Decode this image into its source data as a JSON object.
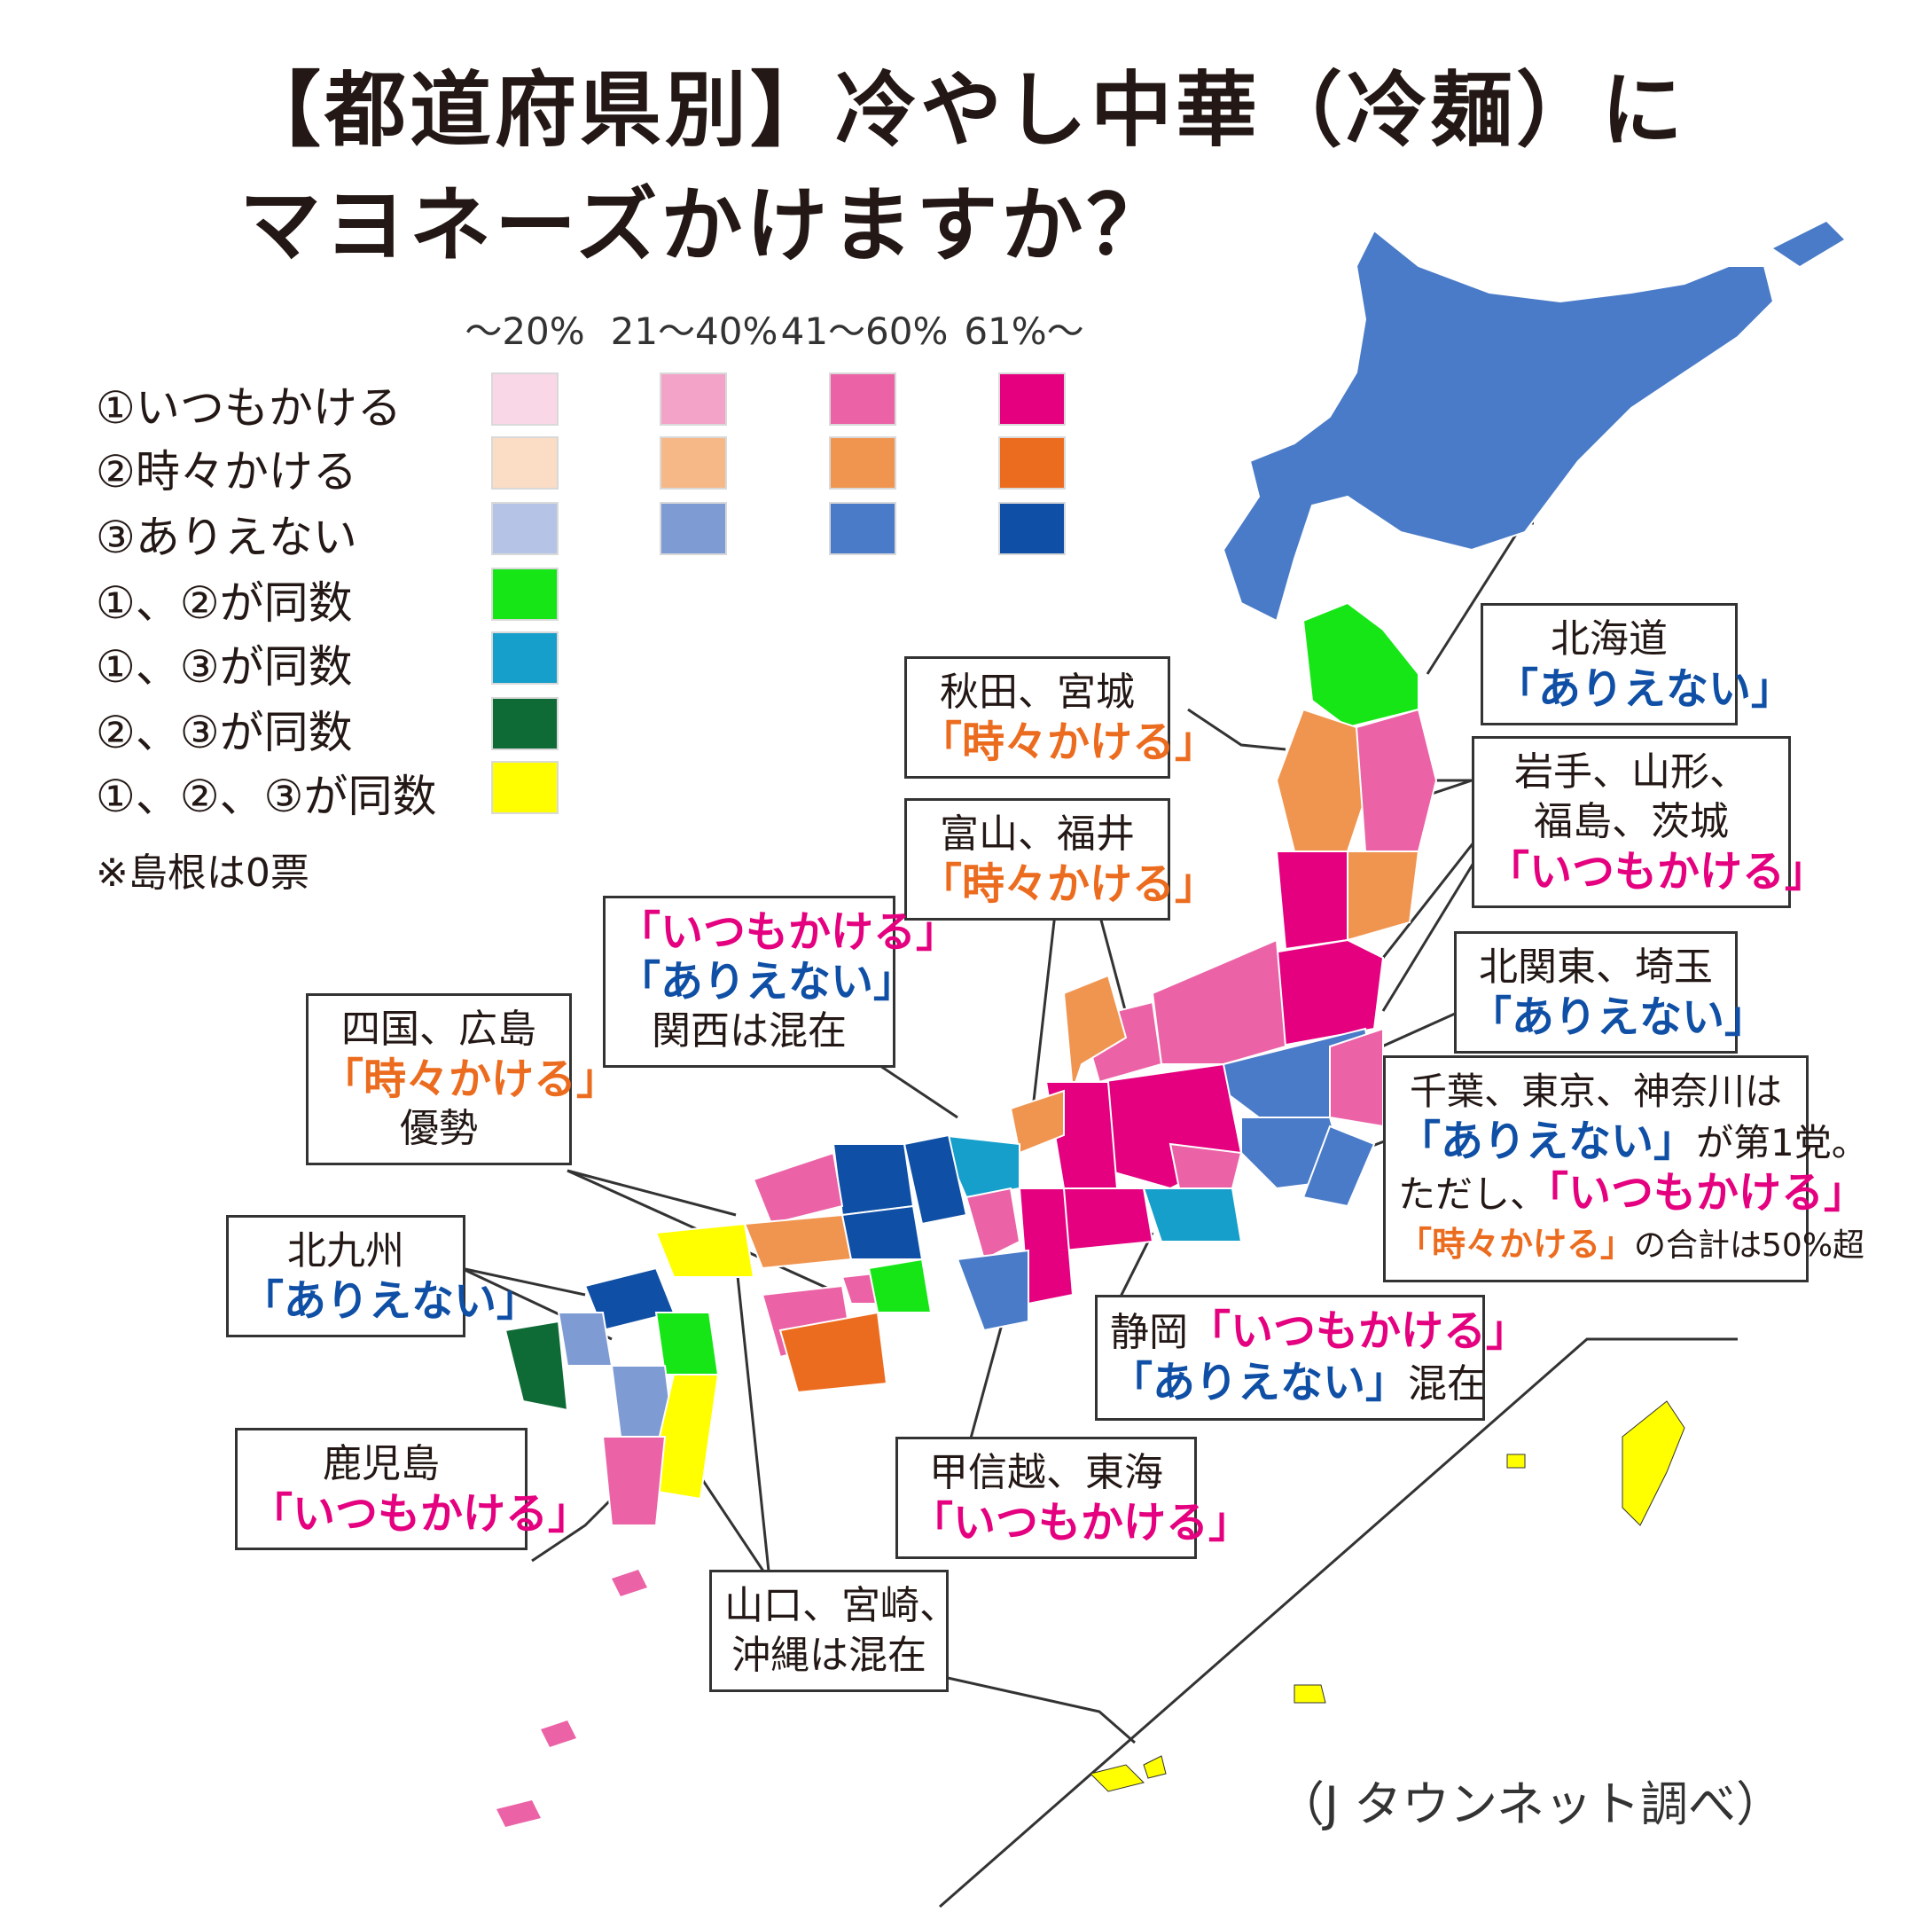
{
  "title": {
    "line1": "【都道府県別】冷やし中華（冷麺）に",
    "line2": "マヨネーズかけますか？"
  },
  "legend": {
    "columns": [
      "～20%",
      "21～40%",
      "41～60%",
      "61%～"
    ],
    "rows": [
      {
        "label": "①いつもかける",
        "colors": [
          "#f9d7e6",
          "#f4a3c8",
          "#eb63a6",
          "#e4007f"
        ]
      },
      {
        "label": "②時々かける",
        "colors": [
          "#fbdcc5",
          "#f7b888",
          "#f09550",
          "#ec6c1f"
        ]
      },
      {
        "label": "③ありえない",
        "colors": [
          "#b5c4e6",
          "#7f9bd3",
          "#4a7bc8",
          "#0f4fa5"
        ]
      },
      {
        "label": "①、②が同数",
        "colors": [
          "#16e616"
        ]
      },
      {
        "label": "①、③が同数",
        "colors": [
          "#159fca"
        ]
      },
      {
        "label": "②、③が同数",
        "colors": [
          "#0f6b35"
        ]
      },
      {
        "label": "①、②、③が同数",
        "colors": [
          "#ffff00"
        ]
      }
    ],
    "note": "※島根は0票"
  },
  "callouts": {
    "hokkaido": {
      "region": "北海道",
      "answer": "「ありえない」"
    },
    "akita": {
      "region": "秋田、宮城",
      "answer": "「時々かける」"
    },
    "iwate": {
      "line1": "岩手、山形、",
      "line2": "福島、茨城",
      "answer": "「いつもかける」"
    },
    "toyama": {
      "region": "富山、福井",
      "answer": "「時々かける」"
    },
    "kansai": {
      "answer1": "「いつもかける」",
      "answer2": "「ありえない」",
      "text": "関西は混在"
    },
    "shikoku": {
      "region": "四国、広島",
      "answer": "「時々かける」",
      "text": "優勢"
    },
    "kitakanto": {
      "region": "北関東、埼玉",
      "answer": "「ありえない」"
    },
    "chiba": {
      "line1": "千葉、東京、神奈川は",
      "answer1": "「ありえない」",
      "after1": "が第1党。",
      "before2": "ただし、",
      "answer2": "「いつもかける」",
      "answer3": "「時々かける」",
      "after3": "の合計は50%超"
    },
    "kitakyushu": {
      "region": "北九州",
      "answer": "「ありえない」"
    },
    "shizuoka": {
      "region": "静岡",
      "answer1": "「いつもかける」",
      "answer2": "「ありえない」",
      "text": "混在"
    },
    "koshinetsu": {
      "region": "甲信越、東海",
      "answer": "「いつもかける」"
    },
    "kagoshima": {
      "region": "鹿児島",
      "answer": "「いつもかける」"
    },
    "yamaguchi": {
      "line1": "山口、宮崎、",
      "line2": "沖縄は混在"
    }
  },
  "source": "（J タウンネット調べ）",
  "colors": {
    "always": "#e4007f",
    "sometimes": "#ec6c1f",
    "never": "#0f4fa5"
  }
}
